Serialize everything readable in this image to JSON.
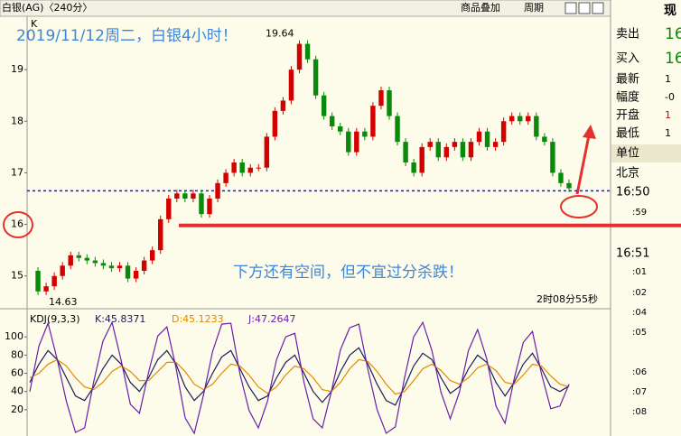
{
  "toolbar": {
    "symbol": "白银(AG)〈240分〉",
    "overlay": "商品叠加",
    "period": "周期"
  },
  "chart_data": {
    "type": "candle",
    "title": "2019/11/12周二，白银4小时！",
    "annotation": "下方还有空间，但不宜过分杀跌！",
    "corner_label": "K",
    "countdown": "2时08分55秒",
    "high_label": 19.64,
    "low_label": 14.63,
    "up_color": "#d40000",
    "down_color": "#0a8a0a",
    "ylim": [
      14.4,
      20.0
    ],
    "yticks": [
      15,
      16,
      17,
      18,
      19
    ],
    "dotted_level": 16.65,
    "red_level": 15.98,
    "values": [
      15.1,
      14.7,
      14.8,
      15.0,
      15.2,
      15.4,
      15.35,
      15.3,
      15.25,
      15.2,
      15.15,
      15.2,
      14.95,
      15.1,
      15.3,
      15.5,
      16.1,
      16.5,
      16.6,
      16.5,
      16.6,
      16.2,
      16.5,
      16.8,
      17.0,
      17.2,
      17.0,
      17.1,
      17.1,
      17.7,
      18.2,
      18.4,
      19.0,
      19.5,
      19.2,
      18.5,
      18.1,
      17.9,
      17.8,
      17.4,
      17.8,
      17.7,
      18.3,
      18.6,
      18.1,
      17.6,
      17.2,
      17.0,
      17.5,
      17.6,
      17.3,
      17.5,
      17.6,
      17.3,
      17.6,
      17.8,
      17.5,
      17.6,
      18.0,
      18.1,
      18.0,
      18.1,
      17.7,
      17.6,
      17.0,
      16.8,
      16.7
    ],
    "indicator": {
      "type": "line",
      "title": "KDJ(9,3,3)",
      "ylim": [
        -6,
        128
      ],
      "yticks": [
        20,
        40,
        60,
        80,
        100
      ],
      "series": [
        {
          "name": "K:45.8371",
          "color": "#1c1c5a",
          "values": [
            50,
            70,
            85,
            75,
            55,
            35,
            30,
            45,
            65,
            80,
            70,
            50,
            40,
            55,
            75,
            85,
            70,
            45,
            30,
            40,
            60,
            78,
            85,
            65,
            45,
            30,
            35,
            55,
            72,
            80,
            60,
            40,
            28,
            40,
            62,
            80,
            88,
            70,
            48,
            30,
            25,
            45,
            68,
            82,
            75,
            55,
            38,
            45,
            65,
            80,
            72,
            50,
            35,
            50,
            70,
            82,
            65,
            45,
            40,
            46
          ]
        },
        {
          "name": "D:45.1233",
          "color": "#e08a00",
          "values": [
            55,
            60,
            70,
            75,
            68,
            55,
            45,
            42,
            50,
            62,
            68,
            62,
            52,
            52,
            62,
            72,
            72,
            62,
            48,
            42,
            48,
            60,
            70,
            68,
            58,
            45,
            38,
            45,
            58,
            68,
            65,
            55,
            42,
            40,
            50,
            65,
            75,
            73,
            62,
            48,
            37,
            40,
            52,
            65,
            70,
            63,
            52,
            48,
            55,
            66,
            70,
            63,
            50,
            48,
            58,
            70,
            68,
            57,
            48,
            45
          ]
        },
        {
          "name": "J:47.2647",
          "color": "#6a1fa8",
          "values": [
            40,
            90,
            115,
            75,
            29,
            -5,
            0,
            51,
            95,
            116,
            74,
            26,
            16,
            61,
            101,
            111,
            66,
            11,
            -6,
            36,
            84,
            114,
            115,
            59,
            19,
            0,
            29,
            75,
            100,
            104,
            50,
            10,
            0,
            40,
            86,
            110,
            114,
            64,
            20,
            -6,
            1,
            55,
            100,
            116,
            85,
            39,
            10,
            39,
            85,
            108,
            76,
            24,
            5,
            54,
            94,
            106,
            59,
            21,
            24,
            48
          ]
        }
      ]
    }
  },
  "quote_panel": {
    "header": "现",
    "rows": [
      [
        "卖出",
        "16"
      ],
      [
        "买入",
        "16"
      ],
      [
        "最新",
        "1"
      ],
      [
        "幅度",
        "-0"
      ],
      [
        "开盘",
        "1"
      ],
      [
        "最低",
        "1"
      ]
    ],
    "unit": "单位",
    "city": "北京",
    "times": [
      "16:50",
      ":59",
      "16:51",
      ":01",
      ":02",
      ":04",
      ":05",
      ":06",
      ":07",
      ":08"
    ]
  }
}
